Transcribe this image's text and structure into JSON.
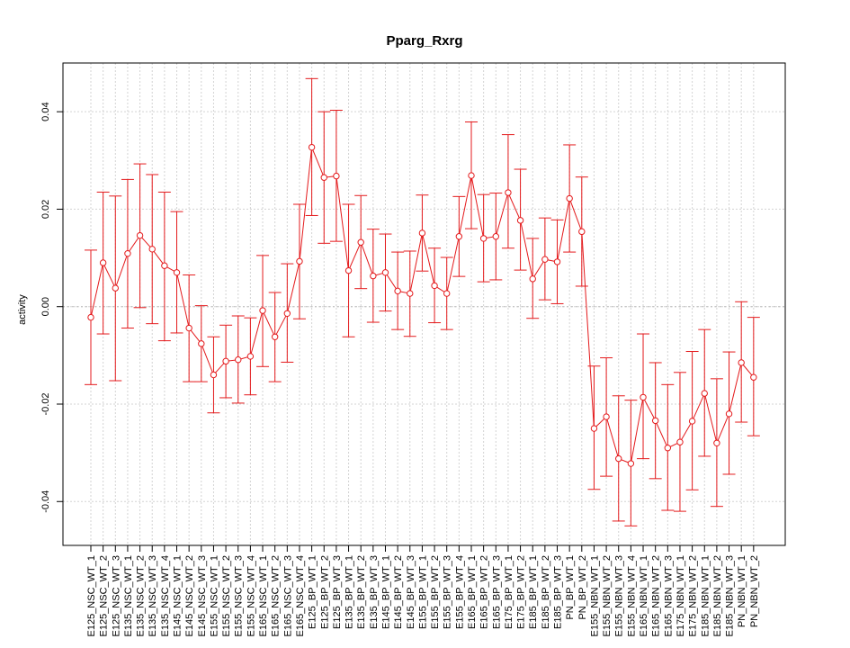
{
  "chart_data": {
    "type": "line",
    "title": "Pparg_Rxrg",
    "xlabel": "",
    "ylabel": "activity",
    "ylim": [
      -0.049,
      0.05
    ],
    "yticks": [
      -0.04,
      -0.02,
      0.0,
      0.02,
      0.04
    ],
    "ytick_labels": [
      "-0.04",
      "-0.02",
      "0.00",
      "0.02",
      "0.04"
    ],
    "grid": true,
    "reference_line": 0.0,
    "colors": {
      "series": "#e41a1c",
      "grid": "#d3d3d3",
      "frame": "#000000"
    },
    "categories": [
      "E125_NSC_WT_1",
      "E125_NSC_WT_2",
      "E125_NSC_WT_3",
      "E135_NSC_WT_1",
      "E135_NSC_WT_2",
      "E135_NSC_WT_3",
      "E135_NSC_WT_4",
      "E145_NSC_WT_1",
      "E145_NSC_WT_2",
      "E145_NSC_WT_3",
      "E155_NSC_WT_1",
      "E155_NSC_WT_2",
      "E155_NSC_WT_3",
      "E155_NSC_WT_4",
      "E165_NSC_WT_1",
      "E165_NSC_WT_2",
      "E165_NSC_WT_3",
      "E165_NSC_WT_4",
      "E125_BP_WT_1",
      "E125_BP_WT_2",
      "E125_BP_WT_3",
      "E135_BP_WT_1",
      "E135_BP_WT_2",
      "E135_BP_WT_3",
      "E145_BP_WT_1",
      "E145_BP_WT_2",
      "E145_BP_WT_3",
      "E155_BP_WT_1",
      "E155_BP_WT_2",
      "E155_BP_WT_3",
      "E155_BP_WT_4",
      "E165_BP_WT_1",
      "E165_BP_WT_2",
      "E165_BP_WT_3",
      "E175_BP_WT_1",
      "E175_BP_WT_2",
      "E185_BP_WT_1",
      "E185_BP_WT_2",
      "E185_BP_WT_3",
      "PN_BP_WT_1",
      "PN_BP_WT_2",
      "E155_NBN_WT_1",
      "E155_NBN_WT_2",
      "E155_NBN_WT_3",
      "E155_NBN_WT_4",
      "E165_NBN_WT_1",
      "E165_NBN_WT_2",
      "E165_NBN_WT_3",
      "E175_NBN_WT_1",
      "E175_NBN_WT_2",
      "E185_NBN_WT_1",
      "E185_NBN_WT_2",
      "E185_NBN_WT_3",
      "PN_NBN_WT_1",
      "PN_NBN_WT_2"
    ],
    "series": [
      {
        "values": [
          -0.0022,
          0.009,
          0.0038,
          0.0109,
          0.0146,
          0.0118,
          0.0084,
          0.007,
          -0.0044,
          -0.0076,
          -0.014,
          -0.0112,
          -0.0109,
          -0.0102,
          -0.0008,
          -0.0062,
          -0.0014,
          0.0093,
          0.0327,
          0.0265,
          0.0268,
          0.0074,
          0.0132,
          0.0063,
          0.007,
          0.0032,
          0.0027,
          0.0151,
          0.0043,
          0.0027,
          0.0144,
          0.0269,
          0.014,
          0.0144,
          0.0234,
          0.0177,
          0.0057,
          0.0097,
          0.0092,
          0.0222,
          0.0154,
          -0.025,
          -0.0226,
          -0.0312,
          -0.0322,
          -0.0186,
          -0.0234,
          -0.029,
          -0.0278,
          -0.0235,
          -0.0178,
          -0.028,
          -0.022,
          -0.0115,
          -0.0145
        ],
        "lower": [
          -0.016,
          -0.0056,
          -0.0152,
          -0.0044,
          -0.0002,
          -0.0035,
          -0.007,
          -0.0054,
          -0.0154,
          -0.0154,
          -0.0218,
          -0.0187,
          -0.0198,
          -0.0181,
          -0.0123,
          -0.0154,
          -0.0114,
          -0.0025,
          0.0187,
          0.013,
          0.0134,
          -0.0062,
          0.0037,
          -0.0032,
          -0.0009,
          -0.0047,
          -0.0061,
          0.0073,
          -0.0033,
          -0.0047,
          0.0062,
          0.016,
          0.0051,
          0.0055,
          0.012,
          0.0075,
          -0.0024,
          0.0014,
          0.0006,
          0.0112,
          0.0042,
          -0.0375,
          -0.0348,
          -0.044,
          -0.045,
          -0.0312,
          -0.0353,
          -0.0418,
          -0.042,
          -0.0376,
          -0.0307,
          -0.041,
          -0.0344,
          -0.0237,
          -0.0265
        ],
        "upper": [
          0.0116,
          0.0235,
          0.0227,
          0.0261,
          0.0293,
          0.0271,
          0.0235,
          0.0195,
          0.0065,
          0.0002,
          -0.0062,
          -0.0038,
          -0.0019,
          -0.0023,
          0.0105,
          0.0029,
          0.0088,
          0.021,
          0.0468,
          0.04,
          0.0403,
          0.021,
          0.0228,
          0.0159,
          0.0149,
          0.0112,
          0.0114,
          0.0229,
          0.012,
          0.0101,
          0.0226,
          0.0379,
          0.023,
          0.0233,
          0.0353,
          0.0282,
          0.014,
          0.0182,
          0.0178,
          0.0332,
          0.0266,
          -0.0122,
          -0.0105,
          -0.0183,
          -0.0192,
          -0.0056,
          -0.0115,
          -0.016,
          -0.0135,
          -0.0092,
          -0.0047,
          -0.0148,
          -0.0093,
          0.001,
          -0.0022
        ]
      }
    ]
  }
}
